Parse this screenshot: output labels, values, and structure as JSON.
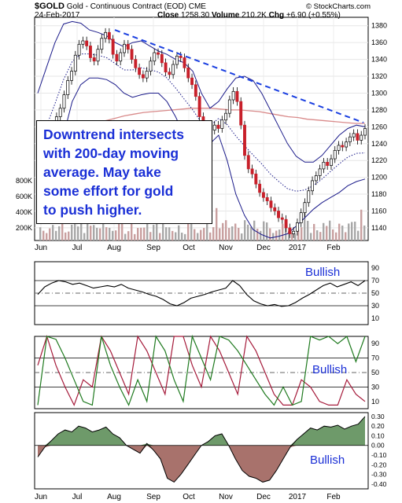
{
  "header": {
    "symbol": "$GOLD",
    "name": "Gold - Continuous Contract (EOD)",
    "exchange": "CME",
    "source": "© StockCharts.com",
    "date": "24-Feb-2017",
    "close_label": "Close",
    "close_value": "1258.30",
    "volume_label": "Volume",
    "volume_value": "210.2K",
    "chg_label": "Chg",
    "chg_value": "+6.90 (+0.55%)"
  },
  "annotation": {
    "lines": [
      "Downtrend intersects",
      "with 200-day moving",
      "average. May take",
      "some effort for gold",
      "to push higher."
    ]
  },
  "panel_labels": {
    "rsi": "Bullish",
    "aroon": "Bullish",
    "ppo": "Bullish"
  },
  "colors": {
    "annotation_text": "#1a2fd6",
    "trendline": "#1a3fe0",
    "bollinger": "#1b1b8a",
    "ma200": "#d98a8a",
    "aroon_up": "#1f7a1f",
    "aroon_down": "#a51a3a",
    "ppo_pos": "#6e9a6a",
    "ppo_neg": "#a8726c"
  },
  "chart_data": [
    {
      "type": "candlestick",
      "yaxis": [
        1140,
        1160,
        1180,
        1200,
        1220,
        1240,
        1260,
        1280,
        1300,
        1320,
        1340,
        1360,
        1380
      ],
      "ylim": [
        1125,
        1390
      ],
      "xlabels": [
        "Jun",
        "Jul",
        "Aug",
        "Sep",
        "Oct",
        "Nov",
        "Dec",
        "2017",
        "Feb"
      ],
      "volume_axis": [
        "200K",
        "400K",
        "600K",
        "800K"
      ],
      "close_series": [
        1212,
        1218,
        1226,
        1238,
        1262,
        1272,
        1282,
        1298,
        1315,
        1326,
        1345,
        1358,
        1362,
        1356,
        1342,
        1338,
        1352,
        1365,
        1372,
        1364,
        1346,
        1338,
        1348,
        1358,
        1352,
        1340,
        1330,
        1322,
        1318,
        1326,
        1338,
        1348,
        1346,
        1336,
        1325,
        1322,
        1334,
        1344,
        1342,
        1330,
        1318,
        1310,
        1296,
        1272,
        1258,
        1252,
        1256,
        1262,
        1258,
        1268,
        1276,
        1292,
        1302,
        1290,
        1262,
        1226,
        1210,
        1204,
        1192,
        1182,
        1176,
        1172,
        1164,
        1160,
        1152,
        1150,
        1140,
        1133,
        1136,
        1146,
        1158,
        1170,
        1184,
        1196,
        1202,
        1210,
        1218,
        1214,
        1222,
        1232,
        1238,
        1236,
        1242,
        1248,
        1252,
        1244,
        1250,
        1258
      ],
      "bollinger_upper": [
        1300,
        1330,
        1360,
        1382,
        1385,
        1383,
        1375,
        1372,
        1368,
        1360,
        1355,
        1360,
        1362,
        1356,
        1350,
        1346,
        1340,
        1336,
        1326,
        1300,
        1282,
        1290,
        1305,
        1318,
        1320,
        1315,
        1300,
        1280,
        1260,
        1240,
        1225,
        1218,
        1218,
        1226,
        1238,
        1250,
        1258,
        1262,
        1260
      ],
      "bollinger_lower": [
        1180,
        1190,
        1215,
        1250,
        1290,
        1310,
        1318,
        1318,
        1316,
        1310,
        1300,
        1295,
        1298,
        1300,
        1300,
        1290,
        1272,
        1250,
        1234,
        1230,
        1240,
        1250,
        1220,
        1180,
        1155,
        1138,
        1132,
        1128,
        1130,
        1133,
        1142,
        1152,
        1162,
        1170,
        1176,
        1182,
        1190,
        1195,
        1198
      ],
      "ma200": [
        1213,
        1225,
        1236,
        1244,
        1252,
        1258,
        1263,
        1267,
        1270,
        1273,
        1275,
        1277,
        1278,
        1279,
        1280,
        1281,
        1282,
        1282,
        1282,
        1281,
        1280,
        1280,
        1279,
        1278,
        1276,
        1274,
        1272,
        1271,
        1269,
        1268,
        1267,
        1266,
        1265,
        1264,
        1264
      ],
      "trendline": [
        {
          "date": "Aug",
          "value": 1375
        },
        {
          "date": "Feb",
          "value": 1265
        }
      ]
    },
    {
      "type": "line",
      "name": "RSI",
      "yaxis": [
        10,
        30,
        50,
        70,
        90
      ],
      "ylim": [
        0,
        100
      ],
      "values": [
        48,
        60,
        66,
        70,
        68,
        64,
        66,
        62,
        58,
        60,
        62,
        60,
        64,
        58,
        55,
        52,
        48,
        45,
        40,
        33,
        30,
        35,
        42,
        45,
        48,
        52,
        55,
        58,
        70,
        62,
        48,
        38,
        33,
        30,
        32,
        29,
        30,
        35,
        42,
        48,
        55,
        62,
        66,
        60,
        64,
        68,
        62,
        70
      ]
    },
    {
      "type": "line",
      "name": "Aroon",
      "yaxis": [
        10,
        30,
        50,
        70,
        90
      ],
      "ylim": [
        0,
        100
      ],
      "series": [
        {
          "values": [
            5,
            100,
            96,
            70,
            40,
            10,
            5,
            100,
            60,
            30,
            5,
            40,
            10,
            100,
            80,
            40,
            10,
            100,
            70,
            40,
            100,
            95,
            80,
            60,
            40,
            20,
            5,
            30,
            5,
            10,
            100,
            95,
            100,
            90,
            100,
            65,
            100
          ]
        },
        {
          "values": [
            60,
            100,
            60,
            30,
            5,
            40,
            30,
            100,
            80,
            50,
            20,
            100,
            80,
            50,
            20,
            100,
            100,
            60,
            30,
            100,
            80,
            50,
            20,
            100,
            80,
            50,
            20,
            5,
            5,
            40,
            30,
            10,
            5,
            5,
            40,
            20,
            10
          ]
        }
      ]
    },
    {
      "type": "area",
      "name": "PPO",
      "yaxis": [
        0.3,
        0.2,
        0.1,
        0.0,
        -0.1,
        -0.2,
        -0.3,
        -0.4
      ],
      "ylim": [
        -0.45,
        0.34
      ],
      "values": [
        -0.12,
        -0.02,
        0.05,
        0.12,
        0.16,
        0.14,
        0.2,
        0.18,
        0.14,
        0.16,
        0.19,
        0.12,
        0.08,
        0.0,
        -0.04,
        -0.08,
        0.02,
        -0.05,
        -0.14,
        -0.34,
        -0.38,
        -0.3,
        -0.2,
        -0.1,
        0.0,
        0.04,
        0.1,
        0.12,
        0.0,
        -0.14,
        -0.26,
        -0.32,
        -0.34,
        -0.38,
        -0.36,
        -0.26,
        -0.14,
        -0.02,
        0.06,
        0.12,
        0.18,
        0.16,
        0.2,
        0.19,
        0.21,
        0.17,
        0.2,
        0.22,
        0.3
      ]
    }
  ]
}
